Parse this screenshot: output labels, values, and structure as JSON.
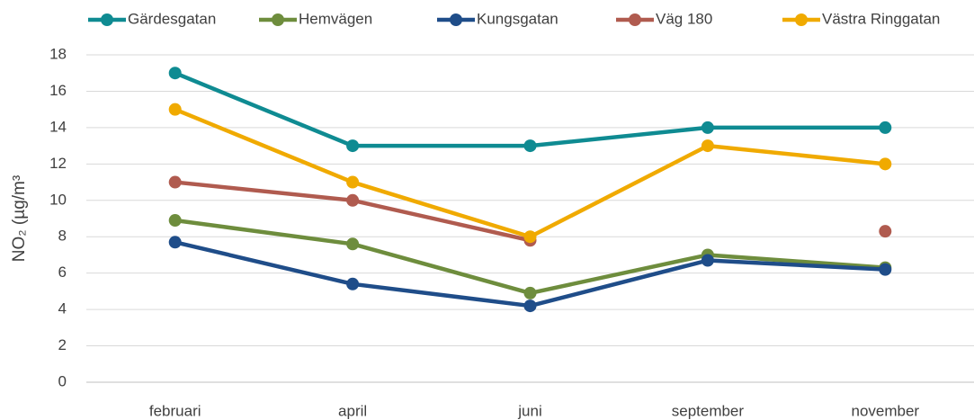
{
  "chart_data": {
    "type": "line",
    "y_label": "NO₂ (µg/m³",
    "categories": [
      "februari",
      "april",
      "juni",
      "september",
      "november"
    ],
    "series": [
      {
        "name": "Gärdesgatan",
        "color": "#0f8b92",
        "values": [
          17,
          13,
          13,
          14,
          14
        ]
      },
      {
        "name": "Hemvägen",
        "color": "#6e8d3d",
        "values": [
          8.9,
          7.6,
          4.9,
          7.0,
          6.3
        ]
      },
      {
        "name": "Kungsgatan",
        "color": "#1f4d89",
        "values": [
          7.7,
          5.4,
          4.2,
          6.7,
          6.2
        ]
      },
      {
        "name": "Väg 180",
        "color": "#b05b4f",
        "values": [
          11,
          10,
          7.8,
          null,
          8.3
        ]
      },
      {
        "name": "Västra Ringgatan",
        "color": "#f0aa00",
        "values": [
          15,
          11,
          8,
          13,
          12
        ]
      }
    ],
    "ylim": [
      0,
      18
    ],
    "yticks": [
      0,
      2,
      4,
      6,
      8,
      10,
      12,
      14,
      16,
      18
    ],
    "grid": true,
    "legend": "top"
  }
}
